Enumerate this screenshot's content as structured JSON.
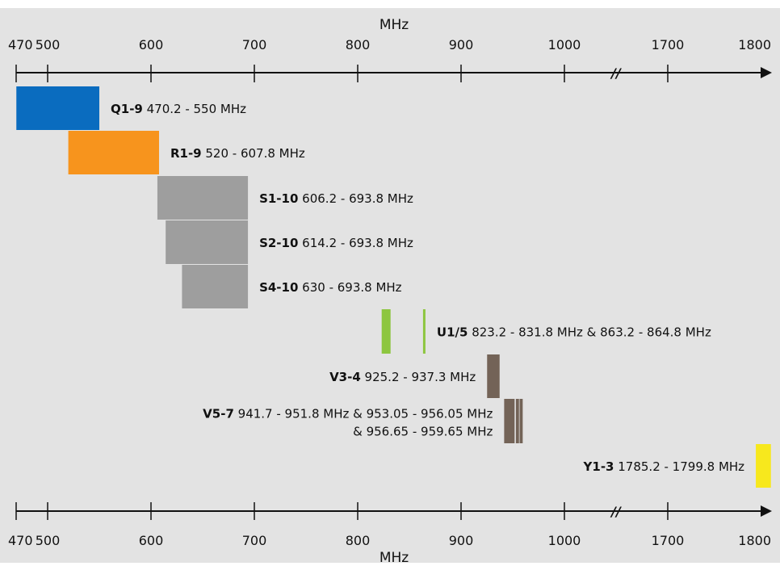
{
  "axis_title": "MHz",
  "ticks": [
    "470",
    "500",
    "600",
    "700",
    "800",
    "900",
    "1000",
    "1700",
    "1800"
  ],
  "break_mark": "//",
  "colors": {
    "background": "#e3e3e3",
    "Q": "#0a6cbf",
    "R": "#f7941d",
    "S": "#9e9e9e",
    "U": "#8dc63f",
    "V": "#736357",
    "Y": "#f7e81d",
    "axis": "#111111"
  },
  "bands": [
    {
      "name": "Q1-9",
      "range": "470.2 - 550 MHz",
      "color_key": "Q",
      "segments": [
        [
          470.2,
          550
        ]
      ],
      "label_side": "right"
    },
    {
      "name": "R1-9",
      "range": "520 - 607.8 MHz",
      "color_key": "R",
      "segments": [
        [
          520,
          607.8
        ]
      ],
      "label_side": "right"
    },
    {
      "name": "S1-10",
      "range": "606.2 - 693.8 MHz",
      "color_key": "S",
      "segments": [
        [
          606.2,
          693.8
        ]
      ],
      "label_side": "right"
    },
    {
      "name": "S2-10",
      "range": "614.2 - 693.8 MHz",
      "color_key": "S",
      "segments": [
        [
          614.2,
          693.8
        ]
      ],
      "label_side": "right"
    },
    {
      "name": "S4-10",
      "range": "630 - 693.8 MHz",
      "color_key": "S",
      "segments": [
        [
          630,
          693.8
        ]
      ],
      "label_side": "right"
    },
    {
      "name": "U1/5",
      "range": "823.2 - 831.8 MHz & 863.2 - 864.8 MHz",
      "color_key": "U",
      "segments": [
        [
          823.2,
          831.8
        ],
        [
          863.2,
          864.8
        ]
      ],
      "label_side": "right"
    },
    {
      "name": "V3-4",
      "range": "925.2 - 937.3 MHz",
      "color_key": "V",
      "segments": [
        [
          925.2,
          937.3
        ]
      ],
      "label_side": "left"
    },
    {
      "name": "V5-7",
      "range": "941.7 - 951.8 MHz & 953.05 - 956.05 MHz",
      "range2": "& 956.65 - 959.65 MHz",
      "color_key": "V",
      "segments": [
        [
          941.7,
          951.8
        ],
        [
          953.05,
          956.05
        ],
        [
          956.65,
          959.65
        ]
      ],
      "label_side": "left"
    },
    {
      "name": "Y1-3",
      "range": "1785.2 - 1799.8 MHz",
      "color_key": "Y",
      "segments": [
        [
          1785.2,
          1799.8
        ]
      ],
      "label_side": "left"
    }
  ]
}
